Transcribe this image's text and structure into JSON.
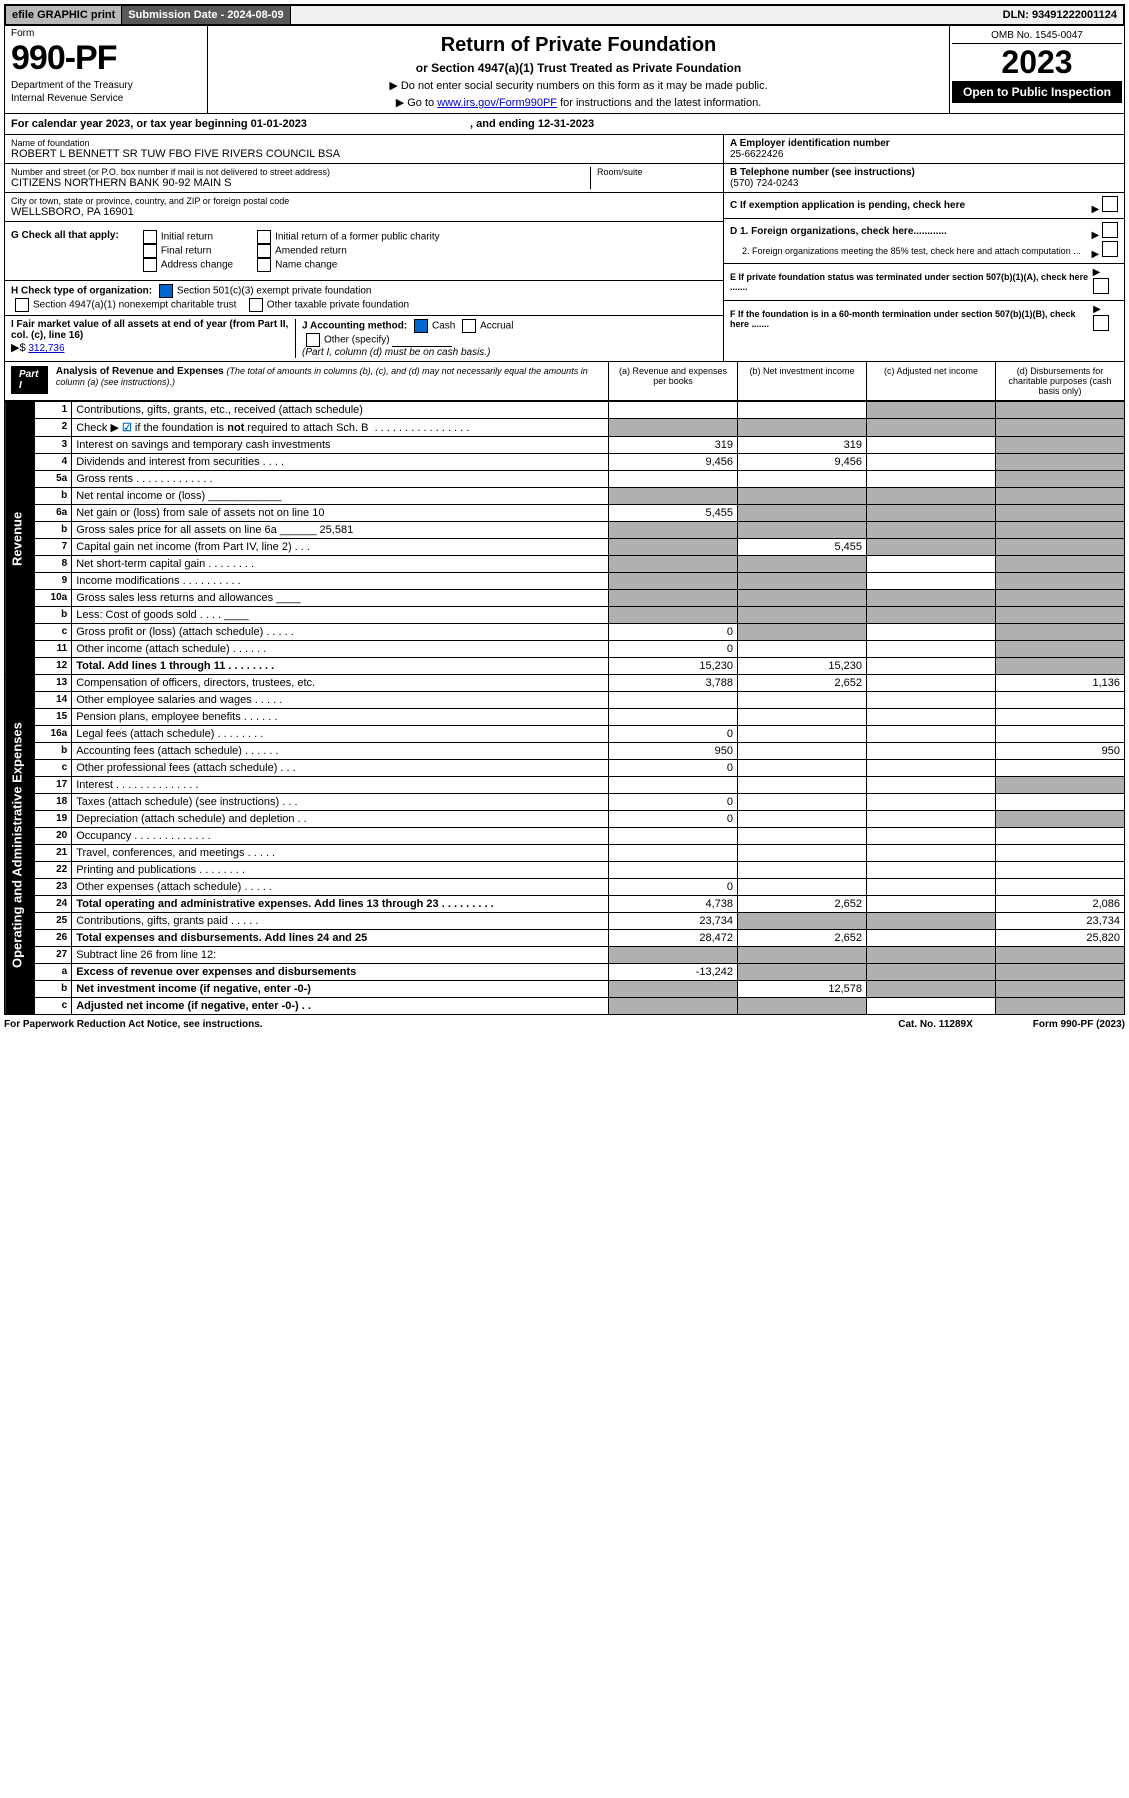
{
  "colors": {
    "black": "#000000",
    "white": "#ffffff",
    "grey_light": "#f0f0f0",
    "grey_mid": "#b8b8b8",
    "grey_dark": "#585858",
    "shade": "#b0b0b0",
    "link": "#0000cc",
    "check_blue": "#0066cc"
  },
  "topbar": {
    "efile": "efile GRAPHIC print",
    "subdate_label": "Submission Date - 2024-08-09",
    "dln": "DLN: 93491222001124"
  },
  "header": {
    "form_label": "Form",
    "form_number": "990-PF",
    "dept1": "Department of the Treasury",
    "dept2": "Internal Revenue Service",
    "title": "Return of Private Foundation",
    "subtitle": "or Section 4947(a)(1) Trust Treated as Private Foundation",
    "note1": "▶ Do not enter social security numbers on this form as it may be made public.",
    "note2_pre": "▶ Go to ",
    "note2_link": "www.irs.gov/Form990PF",
    "note2_post": " for instructions and the latest information.",
    "omb": "OMB No. 1545-0047",
    "year": "2023",
    "open": "Open to Public Inspection"
  },
  "calyear": {
    "pre": "For calendar year 2023, or tax year beginning ",
    "begin": "01-01-2023",
    "mid": " , and ending ",
    "end": "12-31-2023"
  },
  "left": {
    "name_lbl": "Name of foundation",
    "name_val": "ROBERT L BENNETT SR TUW FBO FIVE RIVERS COUNCIL BSA",
    "addr_lbl": "Number and street (or P.O. box number if mail is not delivered to street address)",
    "addr_val": "CITIZENS NORTHERN BANK 90-92 MAIN S",
    "room_lbl": "Room/suite",
    "city_lbl": "City or town, state or province, country, and ZIP or foreign postal code",
    "city_val": "WELLSBORO, PA  16901"
  },
  "right": {
    "a_lbl": "A Employer identification number",
    "a_val": "25-6622426",
    "b_lbl": "B Telephone number (see instructions)",
    "b_val": "(570) 724-0243",
    "c_lbl": "C If exemption application is pending, check here",
    "d1": "D 1. Foreign organizations, check here............",
    "d2": "2. Foreign organizations meeting the 85% test, check here and attach computation ...",
    "e": "E If private foundation status was terminated under section 507(b)(1)(A), check here .......",
    "f": "F If the foundation is in a 60-month termination under section 507(b)(1)(B), check here ......."
  },
  "g": {
    "label": "G Check all that apply:",
    "opts": [
      "Initial return",
      "Final return",
      "Address change",
      "Initial return of a former public charity",
      "Amended return",
      "Name change"
    ]
  },
  "h": {
    "label": "H Check type of organization:",
    "opt1": "Section 501(c)(3) exempt private foundation",
    "opt2": "Section 4947(a)(1) nonexempt charitable trust",
    "opt3": "Other taxable private foundation"
  },
  "i": {
    "label": "I Fair market value of all assets at end of year (from Part II, col. (c), line 16)",
    "arrow": "▶$",
    "val": "312,736"
  },
  "j": {
    "label": "J Accounting method:",
    "cash": "Cash",
    "accrual": "Accrual",
    "other": "Other (specify)",
    "note": "(Part I, column (d) must be on cash basis.)"
  },
  "part1": {
    "hdr": "Part I",
    "title": "Analysis of Revenue and Expenses",
    "title_note": "(The total of amounts in columns (b), (c), and (d) may not necessarily equal the amounts in column (a) (see instructions).)",
    "cols": {
      "a": "(a) Revenue and expenses per books",
      "b": "(b) Net investment income",
      "c": "(c) Adjusted net income",
      "d": "(d) Disbursements for charitable purposes (cash basis only)"
    }
  },
  "side": {
    "rev": "Revenue",
    "exp": "Operating and Administrative Expenses"
  },
  "rows": [
    {
      "n": "1",
      "d": "Contributions, gifts, grants, etc., received (attach schedule)",
      "a": "",
      "b": "",
      "c": "",
      "dcol": "",
      "sa": false,
      "sb": false,
      "sc": true,
      "sd": true
    },
    {
      "n": "2",
      "d": "Check ▶ ☑ if the foundation is not required to attach Sch. B  . . . . . . . . . . . . . . . .",
      "a": "",
      "b": "",
      "c": "",
      "dcol": "",
      "sa": true,
      "sb": true,
      "sc": true,
      "sd": true,
      "bold": false,
      "check": true
    },
    {
      "n": "3",
      "d": "Interest on savings and temporary cash investments",
      "a": "319",
      "b": "319",
      "c": "",
      "dcol": "",
      "sa": false,
      "sb": false,
      "sc": false,
      "sd": true
    },
    {
      "n": "4",
      "d": "Dividends and interest from securities  . . . .",
      "a": "9,456",
      "b": "9,456",
      "c": "",
      "dcol": "",
      "sa": false,
      "sb": false,
      "sc": false,
      "sd": true
    },
    {
      "n": "5a",
      "d": "Gross rents  . . . . . . . . . . . . .",
      "a": "",
      "b": "",
      "c": "",
      "dcol": "",
      "sa": false,
      "sb": false,
      "sc": false,
      "sd": true
    },
    {
      "n": "b",
      "d": "Net rental income or (loss)  ____________",
      "a": "",
      "b": "",
      "c": "",
      "dcol": "",
      "sa": true,
      "sb": true,
      "sc": true,
      "sd": true
    },
    {
      "n": "6a",
      "d": "Net gain or (loss) from sale of assets not on line 10",
      "a": "5,455",
      "b": "",
      "c": "",
      "dcol": "",
      "sa": false,
      "sb": true,
      "sc": true,
      "sd": true
    },
    {
      "n": "b",
      "d": "Gross sales price for all assets on line 6a ______ 25,581",
      "a": "",
      "b": "",
      "c": "",
      "dcol": "",
      "sa": true,
      "sb": true,
      "sc": true,
      "sd": true
    },
    {
      "n": "7",
      "d": "Capital gain net income (from Part IV, line 2)  . . .",
      "a": "",
      "b": "5,455",
      "c": "",
      "dcol": "",
      "sa": true,
      "sb": false,
      "sc": true,
      "sd": true
    },
    {
      "n": "8",
      "d": "Net short-term capital gain  . . . . . . . .",
      "a": "",
      "b": "",
      "c": "",
      "dcol": "",
      "sa": true,
      "sb": true,
      "sc": false,
      "sd": true
    },
    {
      "n": "9",
      "d": "Income modifications  . . . . . . . . . .",
      "a": "",
      "b": "",
      "c": "",
      "dcol": "",
      "sa": true,
      "sb": true,
      "sc": false,
      "sd": true
    },
    {
      "n": "10a",
      "d": "Gross sales less returns and allowances  ____",
      "a": "",
      "b": "",
      "c": "",
      "dcol": "",
      "sa": true,
      "sb": true,
      "sc": true,
      "sd": true
    },
    {
      "n": "b",
      "d": "Less: Cost of goods sold  . . . .  ____",
      "a": "",
      "b": "",
      "c": "",
      "dcol": "",
      "sa": true,
      "sb": true,
      "sc": true,
      "sd": true
    },
    {
      "n": "c",
      "d": "Gross profit or (loss) (attach schedule)  . . . . .",
      "a": "0",
      "b": "",
      "c": "",
      "dcol": "",
      "sa": false,
      "sb": true,
      "sc": false,
      "sd": true
    },
    {
      "n": "11",
      "d": "Other income (attach schedule)  . . . . . .",
      "a": "0",
      "b": "",
      "c": "",
      "dcol": "",
      "sa": false,
      "sb": false,
      "sc": false,
      "sd": true
    },
    {
      "n": "12",
      "d": "Total. Add lines 1 through 11  . . . . . . . .",
      "a": "15,230",
      "b": "15,230",
      "c": "",
      "dcol": "",
      "sa": false,
      "sb": false,
      "sc": false,
      "sd": true,
      "bold": true
    },
    {
      "n": "13",
      "d": "Compensation of officers, directors, trustees, etc.",
      "a": "3,788",
      "b": "2,652",
      "c": "",
      "dcol": "1,136",
      "sa": false,
      "sb": false,
      "sc": false,
      "sd": false
    },
    {
      "n": "14",
      "d": "Other employee salaries and wages  . . . . .",
      "a": "",
      "b": "",
      "c": "",
      "dcol": "",
      "sa": false,
      "sb": false,
      "sc": false,
      "sd": false
    },
    {
      "n": "15",
      "d": "Pension plans, employee benefits  . . . . . .",
      "a": "",
      "b": "",
      "c": "",
      "dcol": "",
      "sa": false,
      "sb": false,
      "sc": false,
      "sd": false
    },
    {
      "n": "16a",
      "d": "Legal fees (attach schedule)  . . . . . . . .",
      "a": "0",
      "b": "",
      "c": "",
      "dcol": "",
      "sa": false,
      "sb": false,
      "sc": false,
      "sd": false
    },
    {
      "n": "b",
      "d": "Accounting fees (attach schedule)  . . . . . .",
      "a": "950",
      "b": "",
      "c": "",
      "dcol": "950",
      "sa": false,
      "sb": false,
      "sc": false,
      "sd": false
    },
    {
      "n": "c",
      "d": "Other professional fees (attach schedule)  . . .",
      "a": "0",
      "b": "",
      "c": "",
      "dcol": "",
      "sa": false,
      "sb": false,
      "sc": false,
      "sd": false
    },
    {
      "n": "17",
      "d": "Interest  . . . . . . . . . . . . . .",
      "a": "",
      "b": "",
      "c": "",
      "dcol": "",
      "sa": false,
      "sb": false,
      "sc": false,
      "sd": true
    },
    {
      "n": "18",
      "d": "Taxes (attach schedule) (see instructions)  . . .",
      "a": "0",
      "b": "",
      "c": "",
      "dcol": "",
      "sa": false,
      "sb": false,
      "sc": false,
      "sd": false
    },
    {
      "n": "19",
      "d": "Depreciation (attach schedule) and depletion  . .",
      "a": "0",
      "b": "",
      "c": "",
      "dcol": "",
      "sa": false,
      "sb": false,
      "sc": false,
      "sd": true
    },
    {
      "n": "20",
      "d": "Occupancy  . . . . . . . . . . . . .",
      "a": "",
      "b": "",
      "c": "",
      "dcol": "",
      "sa": false,
      "sb": false,
      "sc": false,
      "sd": false
    },
    {
      "n": "21",
      "d": "Travel, conferences, and meetings  . . . . .",
      "a": "",
      "b": "",
      "c": "",
      "dcol": "",
      "sa": false,
      "sb": false,
      "sc": false,
      "sd": false
    },
    {
      "n": "22",
      "d": "Printing and publications  . . . . . . . .",
      "a": "",
      "b": "",
      "c": "",
      "dcol": "",
      "sa": false,
      "sb": false,
      "sc": false,
      "sd": false
    },
    {
      "n": "23",
      "d": "Other expenses (attach schedule)  . . . . .",
      "a": "0",
      "b": "",
      "c": "",
      "dcol": "",
      "sa": false,
      "sb": false,
      "sc": false,
      "sd": false
    },
    {
      "n": "24",
      "d": "Total operating and administrative expenses. Add lines 13 through 23  . . . . . . . . .",
      "a": "4,738",
      "b": "2,652",
      "c": "",
      "dcol": "2,086",
      "sa": false,
      "sb": false,
      "sc": false,
      "sd": false,
      "bold": true
    },
    {
      "n": "25",
      "d": "Contributions, gifts, grants paid  . . . . .",
      "a": "23,734",
      "b": "",
      "c": "",
      "dcol": "23,734",
      "sa": false,
      "sb": true,
      "sc": true,
      "sd": false
    },
    {
      "n": "26",
      "d": "Total expenses and disbursements. Add lines 24 and 25",
      "a": "28,472",
      "b": "2,652",
      "c": "",
      "dcol": "25,820",
      "sa": false,
      "sb": false,
      "sc": false,
      "sd": false,
      "bold": true
    },
    {
      "n": "27",
      "d": "Subtract line 26 from line 12:",
      "a": "",
      "b": "",
      "c": "",
      "dcol": "",
      "sa": true,
      "sb": true,
      "sc": true,
      "sd": true
    },
    {
      "n": "a",
      "d": "Excess of revenue over expenses and disbursements",
      "a": "-13,242",
      "b": "",
      "c": "",
      "dcol": "",
      "sa": false,
      "sb": true,
      "sc": true,
      "sd": true,
      "bold": true
    },
    {
      "n": "b",
      "d": "Net investment income (if negative, enter -0-)",
      "a": "",
      "b": "12,578",
      "c": "",
      "dcol": "",
      "sa": true,
      "sb": false,
      "sc": true,
      "sd": true,
      "bold": true
    },
    {
      "n": "c",
      "d": "Adjusted net income (if negative, enter -0-)  . .",
      "a": "",
      "b": "",
      "c": "",
      "dcol": "",
      "sa": true,
      "sb": true,
      "sc": false,
      "sd": true,
      "bold": true
    }
  ],
  "footer": {
    "left": "For Paperwork Reduction Act Notice, see instructions.",
    "mid": "Cat. No. 11289X",
    "right": "Form 990-PF (2023)"
  }
}
